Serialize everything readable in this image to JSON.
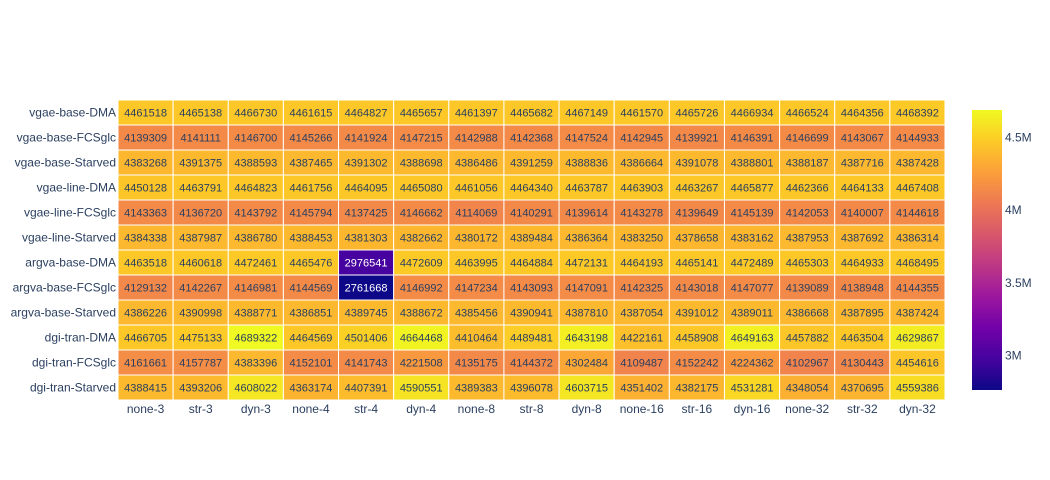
{
  "chart_data": {
    "type": "heatmap",
    "title": "",
    "xlabel": "",
    "ylabel": "",
    "x": [
      "none-3",
      "str-3",
      "dyn-3",
      "none-4",
      "str-4",
      "dyn-4",
      "none-8",
      "str-8",
      "dyn-8",
      "none-16",
      "str-16",
      "dyn-16",
      "none-32",
      "str-32",
      "dyn-32"
    ],
    "y": [
      "vgae-base-DMA",
      "vgae-base-FCSglc",
      "vgae-base-Starved",
      "vgae-line-DMA",
      "vgae-line-FCSglc",
      "vgae-line-Starved",
      "argva-base-DMA",
      "argva-base-FCSglc",
      "argva-base-Starved",
      "dgi-tran-DMA",
      "dgi-tran-FCSglc",
      "dgi-tran-Starved"
    ],
    "z": [
      [
        4461518,
        4465138,
        4466730,
        4461615,
        4464827,
        4465657,
        4461397,
        4465682,
        4467149,
        4461570,
        4465726,
        4466934,
        4466524,
        4464356,
        4468392
      ],
      [
        4139309,
        4141111,
        4146700,
        4145266,
        4141924,
        4147215,
        4142988,
        4142368,
        4147524,
        4142945,
        4139921,
        4146391,
        4146699,
        4143067,
        4144933
      ],
      [
        4383268,
        4391375,
        4388593,
        4387465,
        4391302,
        4388698,
        4386486,
        4391259,
        4388836,
        4386664,
        4391078,
        4388801,
        4388187,
        4387716,
        4387428
      ],
      [
        4450128,
        4463791,
        4464823,
        4461756,
        4464095,
        4465080,
        4461056,
        4464340,
        4463787,
        4463903,
        4463267,
        4465877,
        4462366,
        4464133,
        4467408
      ],
      [
        4143363,
        4136720,
        4143792,
        4145794,
        4137425,
        4146662,
        4114069,
        4140291,
        4139614,
        4143278,
        4139649,
        4145139,
        4142053,
        4140007,
        4144618
      ],
      [
        4384338,
        4387987,
        4386780,
        4388453,
        4381303,
        4382662,
        4380172,
        4389484,
        4386364,
        4383250,
        4378658,
        4383162,
        4387953,
        4387692,
        4386314
      ],
      [
        4463518,
        4460618,
        4472461,
        4465476,
        2976541,
        4472609,
        4463995,
        4464884,
        4472131,
        4464193,
        4465141,
        4472489,
        4465303,
        4464933,
        4468495
      ],
      [
        4129132,
        4142267,
        4146981,
        4144569,
        2761668,
        4146992,
        4147234,
        4143093,
        4147091,
        4142325,
        4143018,
        4147077,
        4139089,
        4138948,
        4144355
      ],
      [
        4386226,
        4390998,
        4388771,
        4386851,
        4389745,
        4388672,
        4385456,
        4390941,
        4387810,
        4387054,
        4391012,
        4389011,
        4386668,
        4387895,
        4387424
      ],
      [
        4466705,
        4475133,
        4689322,
        4464569,
        4501406,
        4664468,
        4410464,
        4489481,
        4643198,
        4422161,
        4458908,
        4649163,
        4457882,
        4463504,
        4629867
      ],
      [
        4161661,
        4157787,
        4383396,
        4152101,
        4141743,
        4221508,
        4135175,
        4144372,
        4302484,
        4109487,
        4152242,
        4224362,
        4102967,
        4130443,
        4454616
      ],
      [
        4388415,
        4393206,
        4608022,
        4363174,
        4407391,
        4590551,
        4389383,
        4396078,
        4603715,
        4351402,
        4382175,
        4531281,
        4348054,
        4370695,
        4559386
      ]
    ],
    "zrange": [
      2761668,
      4689322
    ],
    "colorscale": "plasma",
    "colorbar": {
      "ticks": [
        3000000,
        3500000,
        4000000,
        4500000
      ],
      "ticklabels": [
        "3M",
        "3.5M",
        "4M",
        "4.5M"
      ]
    },
    "cell_text_colors": {
      "light": "#ffffff",
      "dark": "#2a3f5f"
    }
  }
}
